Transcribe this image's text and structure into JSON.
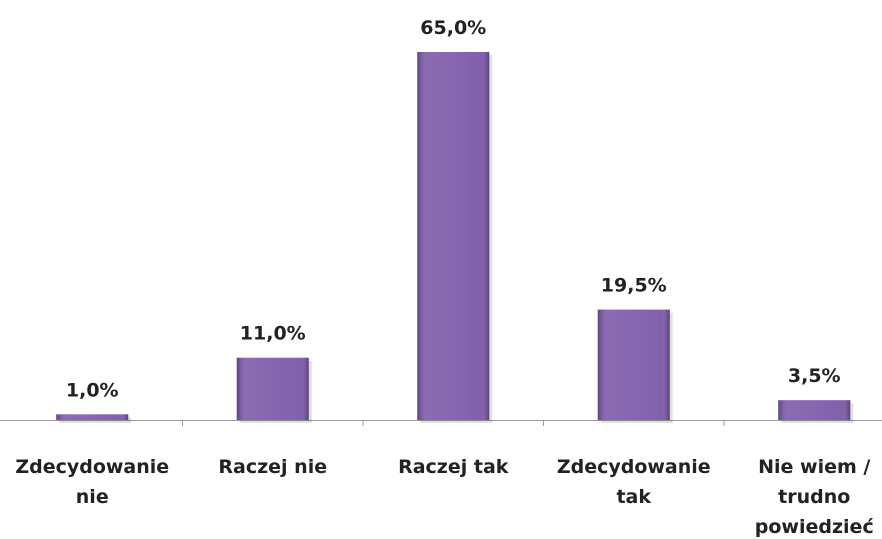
{
  "chart_data": {
    "type": "bar",
    "categories": [
      "Zdecydowanie nie",
      "Raczej nie",
      "Raczej tak",
      "Zdecydowanie tak",
      "Nie wiem / trudno powiedzieć"
    ],
    "values": [
      1.0,
      11.0,
      65.0,
      19.5,
      3.5
    ],
    "value_labels": [
      "1,0%",
      "11,0%",
      "65,0%",
      "19,5%",
      "3,5%"
    ],
    "color": "#7b58a8"
  }
}
